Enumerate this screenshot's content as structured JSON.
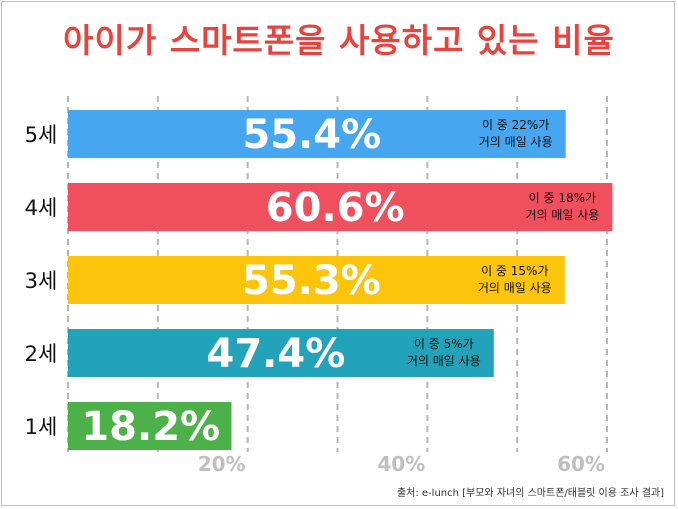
{
  "title": "아이가 스마트폰을 사용하고 있는 비율",
  "source": "출처: e-lunch [부모와 자녀의 스마트폰/태블릿 이용 조사 결과]",
  "colors": {
    "title": "#e8433c",
    "bar_5": "#47a6f0",
    "bar_4": "#f04f5d",
    "bar_3": "#fcc40b",
    "bar_2": "#23a3b9",
    "bar_1": "#4db14a",
    "axis_label": "#bfbfbf",
    "gridline": "#b7b7b7"
  },
  "chart_data": {
    "type": "bar",
    "orientation": "horizontal",
    "title": "아이가 스마트폰을 사용하고 있는 비율",
    "xlabel": "",
    "ylabel": "",
    "xlim": [
      0,
      60
    ],
    "x_ticks": [
      10,
      20,
      30,
      40,
      50,
      60
    ],
    "x_tick_labels": [
      {
        "value": 20,
        "label": "20%"
      },
      {
        "value": 40,
        "label": "40%"
      },
      {
        "value": 60,
        "label": "60%"
      }
    ],
    "grid": true,
    "categories": [
      "5세",
      "4세",
      "3세",
      "2세",
      "1세"
    ],
    "values": [
      55.4,
      60.6,
      55.3,
      47.4,
      18.2
    ],
    "value_labels": [
      "55.4%",
      "60.6%",
      "55.3%",
      "47.4%",
      "18.2%"
    ],
    "annotations": [
      {
        "line1": "이 중 22%가",
        "line2": "거의 매일 사용"
      },
      {
        "line1": "이 중 18%가",
        "line2": "거의 매일 사용"
      },
      {
        "line1": "이 중 15%가",
        "line2": "거의 매일 사용"
      },
      {
        "line1": "이 중 5%가",
        "line2": "거의 매일 사용"
      },
      null
    ],
    "bar_colors": [
      "#47a6f0",
      "#f04f5d",
      "#fcc40b",
      "#23a3b9",
      "#4db14a"
    ]
  }
}
